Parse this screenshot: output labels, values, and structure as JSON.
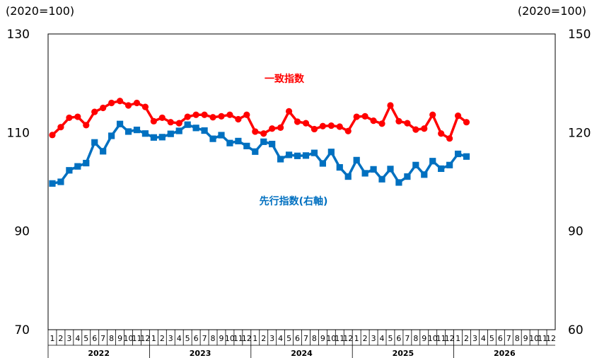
{
  "chart_data": {
    "type": "line",
    "left_axis_unit": "(2020=100)",
    "right_axis_unit": "(2020=100)",
    "y_left": {
      "range": [
        70,
        130
      ],
      "ticks": [
        "70",
        "90",
        "110",
        "130"
      ]
    },
    "y_right": {
      "range": [
        60,
        150
      ],
      "ticks": [
        "60",
        "90",
        "120",
        "150"
      ]
    },
    "years": [
      "2022",
      "2023",
      "2024",
      "2025",
      "2026"
    ],
    "months": [
      "1",
      "2",
      "3",
      "4",
      "5",
      "6",
      "7",
      "8",
      "9",
      "10",
      "11",
      "12"
    ],
    "grid": false,
    "series": [
      {
        "name": "一致指数",
        "axis": "left",
        "color": "#ff0000",
        "marker": "circle",
        "values": [
          109.5,
          111.1,
          113.0,
          113.2,
          111.5,
          114.2,
          115.0,
          116.0,
          116.4,
          115.5,
          116.0,
          115.2,
          112.3,
          113.0,
          112.1,
          111.9,
          113.2,
          113.6,
          113.6,
          113.1,
          113.3,
          113.6,
          112.7,
          113.6,
          110.2,
          109.8,
          110.8,
          111.0,
          114.3,
          112.2,
          111.9,
          110.7,
          111.3,
          111.4,
          111.2,
          110.3,
          113.2,
          113.3,
          112.4,
          111.8,
          115.5,
          112.3,
          111.9,
          110.6,
          110.8,
          113.6,
          109.8,
          108.8,
          113.4,
          112.1
        ]
      },
      {
        "name": "先行指数(右軸)",
        "axis": "right",
        "color": "#0070c0",
        "marker": "square",
        "values": [
          104.5,
          105.0,
          108.5,
          109.7,
          110.7,
          117.0,
          114.3,
          119.0,
          122.6,
          120.3,
          120.8,
          119.7,
          118.5,
          118.6,
          119.6,
          120.5,
          122.4,
          121.4,
          120.6,
          118.1,
          119.2,
          116.8,
          117.4,
          115.9,
          114.2,
          117.2,
          116.5,
          111.9,
          113.2,
          112.9,
          113.0,
          113.8,
          110.6,
          114.1,
          109.4,
          106.6,
          111.6,
          107.6,
          108.8,
          105.8,
          108.9,
          104.8,
          106.6,
          110.1,
          107.2,
          111.3,
          109.0,
          110.1,
          113.5,
          112.7
        ]
      }
    ]
  }
}
